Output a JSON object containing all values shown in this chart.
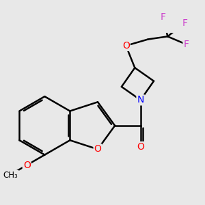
{
  "bg_color": "#e8e8e8",
  "bond_color": "#000000",
  "bond_width": 1.8,
  "atom_colors": {
    "O": "#ff0000",
    "N": "#0000ff",
    "F": "#cc44cc",
    "C": "#000000"
  },
  "font_size": 10,
  "fig_size": [
    3.0,
    3.0
  ],
  "dpi": 100
}
